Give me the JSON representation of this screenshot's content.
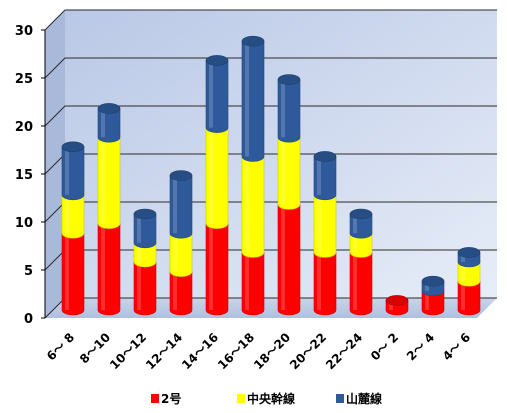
{
  "chart_data": {
    "type": "bar",
    "stacked": true,
    "categories": [
      "6～ 8",
      "8～10",
      "10～12",
      "12～14",
      "14～16",
      "16～18",
      "18～20",
      "20～22",
      "22～24",
      "0～ 2",
      "2～ 4",
      "4～ 6"
    ],
    "series": [
      {
        "name": "2号",
        "color": "#ff0000",
        "values": [
          8,
          9,
          5,
          4,
          9,
          6,
          11,
          6,
          6,
          1,
          2,
          3
        ]
      },
      {
        "name": "中央幹線",
        "color": "#ffff00",
        "values": [
          4,
          9,
          2,
          4,
          10,
          10,
          7,
          6,
          2,
          0,
          0,
          2
        ]
      },
      {
        "name": "山麓線",
        "color": "#2e5a9c",
        "values": [
          5,
          3,
          3,
          6,
          7,
          12,
          6,
          4,
          2,
          0,
          1,
          1
        ]
      }
    ],
    "y_ticks": [
      "0",
      "5",
      "10",
      "15",
      "20",
      "25",
      "30"
    ],
    "ylim": [
      0,
      30
    ],
    "grid": true,
    "legend_position": "bottom",
    "title": "",
    "xlabel": "",
    "ylabel": ""
  }
}
